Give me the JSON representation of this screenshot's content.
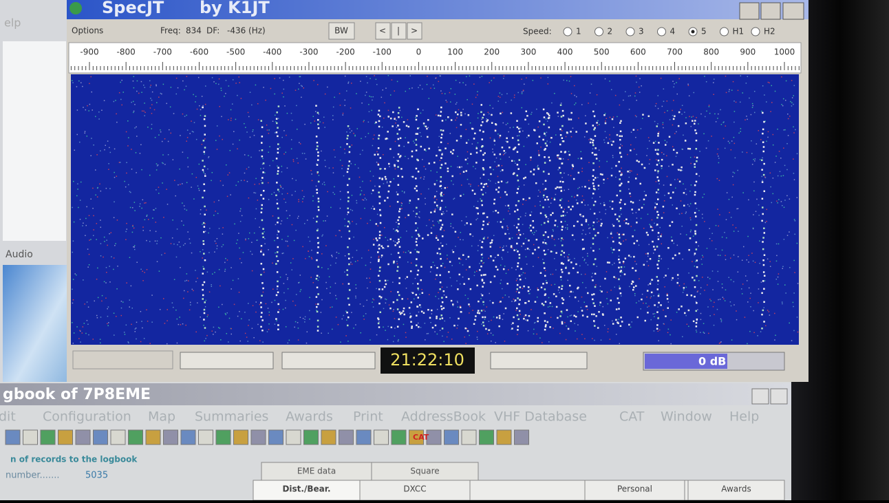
{
  "window": {
    "title": "SpecJT",
    "subtitle": "by K1JT"
  },
  "left_pane": {
    "menu": "elp",
    "audio": "Audio"
  },
  "toolbar": {
    "options": "Options",
    "freq_label": "Freq:",
    "freq": "834",
    "df_label": "DF:",
    "df": "-436 (Hz)",
    "bw": "BW",
    "nav": [
      "<",
      "|",
      ">"
    ],
    "speed_label": "Speed:",
    "speeds": [
      "1",
      "2",
      "3",
      "4",
      "5",
      "H1",
      "H2"
    ],
    "selected_speed": "5"
  },
  "scale": [
    "-900",
    "-800",
    "-700",
    "-600",
    "-500",
    "-400",
    "-300",
    "-200",
    "-100",
    "0",
    "100",
    "200",
    "300",
    "400",
    "500",
    "600",
    "700",
    "800",
    "900",
    "1000"
  ],
  "status": {
    "time": "21:22:10",
    "level": "0 dB"
  },
  "logbook": {
    "title": "gbook of 7P8EME",
    "menu": [
      "dit",
      "Configuration",
      "Map",
      "Summaries",
      "Awards",
      "Print",
      "AddressBook",
      "VHF Database",
      "CAT",
      "Window",
      "Help"
    ],
    "cat_icon": "CAT",
    "group_title": "n of records to the logbook",
    "record_label": "number.......",
    "record_count": "5035",
    "tabs_back": [
      "EME data",
      "Square"
    ],
    "tabs_front": [
      "Dist./Bear.",
      "DXCC",
      "Personal",
      "Awards"
    ]
  }
}
